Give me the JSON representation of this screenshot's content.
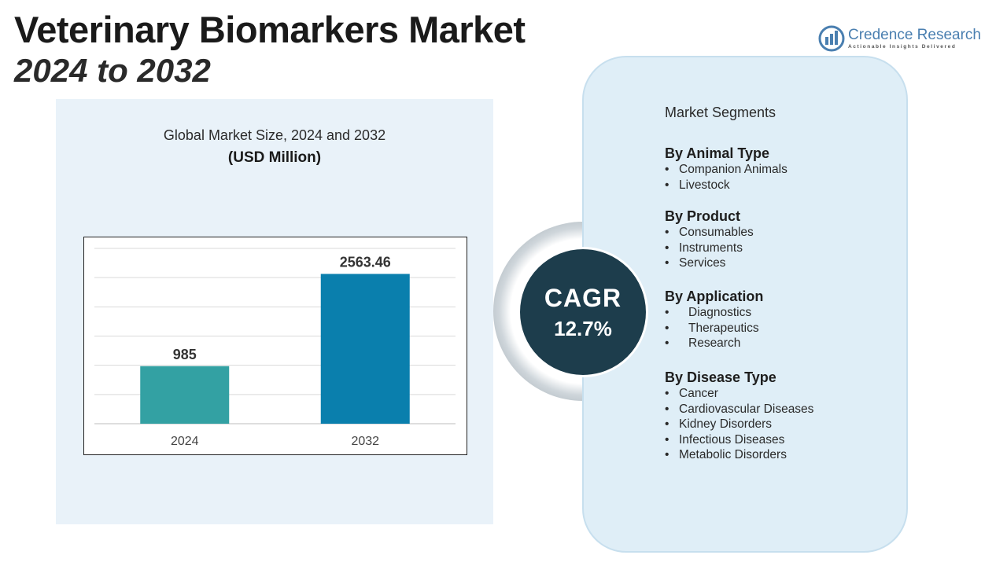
{
  "header": {
    "title": "Veterinary Biomarkers Market",
    "subtitle": "2024 to 2032"
  },
  "logo": {
    "name_part1": "Credence",
    "name_part2": " Research",
    "tagline": "Actionable Insights Delivered",
    "icon": "bar-chart-globe-icon",
    "color": "#4a7fb0"
  },
  "chart_data": {
    "type": "bar",
    "title": "Global Market Size, 2024 and 2032",
    "unit_label": "(USD Million)",
    "categories": [
      "2024",
      "2032"
    ],
    "values": [
      985,
      2563.46
    ],
    "value_labels": [
      "985",
      "2563.46"
    ],
    "colors": [
      "#33a1a3",
      "#0a7fad"
    ],
    "ylim": [
      0,
      3000
    ],
    "grid": true,
    "legend": "none"
  },
  "cagr": {
    "label": "CAGR",
    "value": "12.7%"
  },
  "segments": {
    "title": "Market Segments",
    "groups": [
      {
        "heading": "By Animal Type",
        "items": [
          "Companion Animals",
          "Livestock"
        ]
      },
      {
        "heading": "By Product",
        "items": [
          "Consumables",
          "Instruments",
          "Services"
        ]
      },
      {
        "heading": "By Application",
        "items": [
          "Diagnostics",
          "Therapeutics",
          "Research"
        ]
      },
      {
        "heading": "By Disease Type",
        "items": [
          "Cancer",
          "Cardiovascular Diseases",
          "Kidney Disorders",
          "Infectious Diseases",
          "Metabolic Disorders"
        ]
      }
    ]
  }
}
